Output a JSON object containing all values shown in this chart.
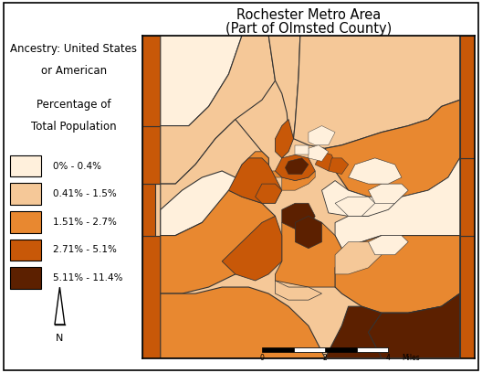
{
  "title_line1": "Rochester Metro Area",
  "title_line2": "(Part of Olmsted County)",
  "left_text_line1": "Ancestry: United States",
  "left_text_line2": "or American",
  "left_text_line3": "Percentage of",
  "left_text_line4": "Total Population",
  "legend_labels": [
    "0% - 0.4%",
    "0.41% - 1.5%",
    "1.51% - 2.7%",
    "2.71% - 5.1%",
    "5.11% - 11.4%"
  ],
  "legend_colors": [
    "#FFF0DC",
    "#F5C898",
    "#E88830",
    "#C85808",
    "#5C2000"
  ],
  "scale_label": "Miles",
  "scale_ticks": [
    "0",
    "2",
    "4"
  ],
  "background_color": "#FFFFFF",
  "map_border_color": "#000000",
  "title_fontsize": 10.5,
  "legend_fontsize": 7.5,
  "label_fontsize": 8.5,
  "figsize": [
    5.28,
    4.08
  ],
  "dpi": 100
}
